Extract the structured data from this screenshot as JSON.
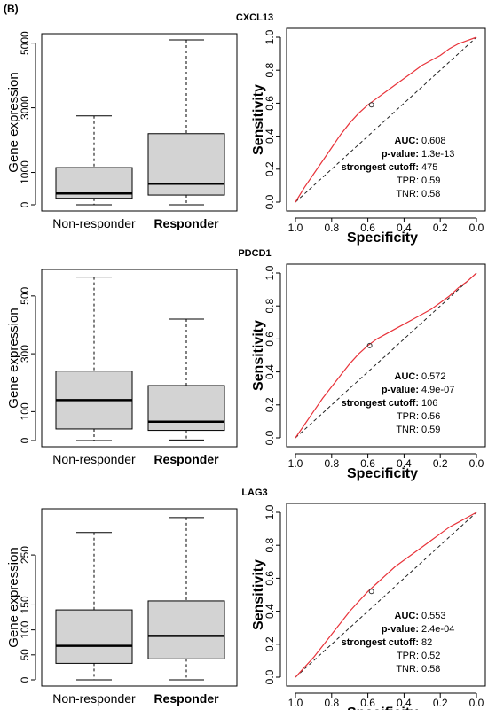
{
  "panel_label": "(B)",
  "chart_data": [
    {
      "type": "boxplot",
      "title": "CXCL13",
      "ylabel": "Gene expression",
      "ylim": [
        0,
        5100
      ],
      "yticks": [
        0,
        1000,
        3000,
        5000
      ],
      "yticklabels": [
        "0",
        "1000",
        "3000",
        "5000"
      ],
      "categories": [
        "Non-responder",
        "Responder"
      ],
      "boxes": [
        {
          "whisker_low": 0,
          "q1": 200,
          "median": 350,
          "q3": 1150,
          "whisker_high": 2750
        },
        {
          "whisker_low": 0,
          "q1": 300,
          "median": 650,
          "q3": 2200,
          "whisker_high": 5100
        }
      ]
    },
    {
      "type": "roc",
      "xlabel": "Specificity",
      "ylabel": "Sensitivity",
      "xlim": [
        1.0,
        0.0
      ],
      "ylim": [
        0.0,
        1.0
      ],
      "ticks": [
        "1.0",
        "0.8",
        "0.6",
        "0.4",
        "0.2",
        "0.0"
      ],
      "curve": {
        "x": [
          1.0,
          0.95,
          0.9,
          0.85,
          0.8,
          0.75,
          0.7,
          0.65,
          0.6,
          0.55,
          0.5,
          0.45,
          0.4,
          0.35,
          0.3,
          0.25,
          0.2,
          0.15,
          0.1,
          0.05,
          0.0
        ],
        "y": [
          0.0,
          0.09,
          0.17,
          0.25,
          0.33,
          0.41,
          0.48,
          0.54,
          0.59,
          0.63,
          0.67,
          0.71,
          0.75,
          0.79,
          0.83,
          0.86,
          0.89,
          0.93,
          0.96,
          0.98,
          1.0
        ]
      },
      "cutoff_point": {
        "specificity": 0.58,
        "sensitivity": 0.59
      },
      "stats": [
        {
          "label": "AUC:",
          "value": "0.608"
        },
        {
          "label": "p-value:",
          "value": "1.3e-13"
        },
        {
          "label": "strongest cutoff:",
          "value": "475"
        },
        {
          "label": "TPR:",
          "value": "0.59"
        },
        {
          "label": "TNR:",
          "value": "0.58"
        }
      ]
    },
    {
      "type": "boxplot",
      "title": "PDCD1",
      "ylabel": "Gene expression",
      "ylim": [
        0,
        570
      ],
      "yticks": [
        0,
        100,
        300,
        500
      ],
      "yticklabels": [
        "0",
        "100",
        "300",
        "500"
      ],
      "categories": [
        "Non-responder",
        "Responder"
      ],
      "boxes": [
        {
          "whisker_low": 0,
          "q1": 40,
          "median": 140,
          "q3": 240,
          "whisker_high": 565
        },
        {
          "whisker_low": 2,
          "q1": 35,
          "median": 65,
          "q3": 190,
          "whisker_high": 420
        }
      ]
    },
    {
      "type": "roc",
      "xlabel": "Specificity",
      "ylabel": "Sensitivity",
      "xlim": [
        1.0,
        0.0
      ],
      "ylim": [
        0.0,
        1.0
      ],
      "ticks": [
        "1.0",
        "0.8",
        "0.6",
        "0.4",
        "0.2",
        "0.0"
      ],
      "curve": {
        "x": [
          1.0,
          0.95,
          0.9,
          0.85,
          0.8,
          0.75,
          0.7,
          0.65,
          0.6,
          0.55,
          0.5,
          0.45,
          0.4,
          0.35,
          0.3,
          0.25,
          0.2,
          0.15,
          0.1,
          0.05,
          0.0
        ],
        "y": [
          0.0,
          0.08,
          0.16,
          0.24,
          0.31,
          0.38,
          0.45,
          0.51,
          0.56,
          0.6,
          0.63,
          0.66,
          0.69,
          0.72,
          0.75,
          0.78,
          0.82,
          0.86,
          0.91,
          0.95,
          1.0
        ]
      },
      "cutoff_point": {
        "specificity": 0.59,
        "sensitivity": 0.56
      },
      "stats": [
        {
          "label": "AUC:",
          "value": "0.572"
        },
        {
          "label": "p-value:",
          "value": "4.9e-07"
        },
        {
          "label": "strongest cutoff:",
          "value": "106"
        },
        {
          "label": "TPR:",
          "value": "0.56"
        },
        {
          "label": "TNR:",
          "value": "0.59"
        }
      ]
    },
    {
      "type": "boxplot",
      "title": "LAG3",
      "ylabel": "Gene expression",
      "ylim": [
        0,
        330
      ],
      "yticks": [
        0,
        50,
        100,
        150,
        250
      ],
      "yticklabels": [
        "0",
        "50",
        "100",
        "150",
        "250"
      ],
      "categories": [
        "Non-responder",
        "Responder"
      ],
      "boxes": [
        {
          "whisker_low": 0,
          "q1": 33,
          "median": 68,
          "q3": 140,
          "whisker_high": 295
        },
        {
          "whisker_low": 0,
          "q1": 42,
          "median": 88,
          "q3": 158,
          "whisker_high": 325
        }
      ]
    },
    {
      "type": "roc",
      "xlabel": "Specificity",
      "ylabel": "Sensitivity",
      "xlim": [
        1.0,
        0.0
      ],
      "ylim": [
        0.0,
        1.0
      ],
      "ticks": [
        "1.0",
        "0.8",
        "0.6",
        "0.4",
        "0.2",
        "0.0"
      ],
      "curve": {
        "x": [
          1.0,
          0.95,
          0.9,
          0.85,
          0.8,
          0.75,
          0.7,
          0.65,
          0.6,
          0.55,
          0.5,
          0.45,
          0.4,
          0.35,
          0.3,
          0.25,
          0.2,
          0.15,
          0.1,
          0.05,
          0.0
        ],
        "y": [
          0.0,
          0.06,
          0.12,
          0.19,
          0.26,
          0.33,
          0.4,
          0.46,
          0.52,
          0.57,
          0.62,
          0.67,
          0.71,
          0.75,
          0.79,
          0.83,
          0.87,
          0.91,
          0.94,
          0.97,
          1.0
        ]
      },
      "cutoff_point": {
        "specificity": 0.58,
        "sensitivity": 0.52
      },
      "stats": [
        {
          "label": "AUC:",
          "value": "0.553"
        },
        {
          "label": "p-value:",
          "value": "2.4e-04"
        },
        {
          "label": "strongest cutoff:",
          "value": "82"
        },
        {
          "label": "TPR:",
          "value": "0.52"
        },
        {
          "label": "TNR:",
          "value": "0.58"
        }
      ]
    }
  ],
  "colors": {
    "box_fill": "#d3d3d3",
    "roc_curve": "#e8333a",
    "diagonal": "#222222",
    "axis": "#000000"
  }
}
